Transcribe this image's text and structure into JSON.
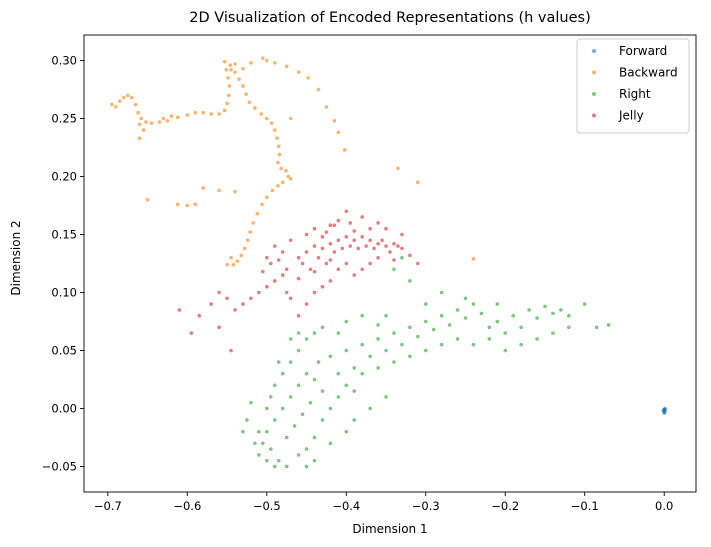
{
  "chart_data": {
    "type": "scatter",
    "title": "2D Visualization of Encoded Representations (h values)",
    "xlabel": "Dimension 1",
    "ylabel": "Dimension 2",
    "xlim": [
      -0.73,
      0.04
    ],
    "ylim": [
      -0.072,
      0.322
    ],
    "x_ticks": [
      -0.7,
      -0.6,
      -0.5,
      -0.4,
      -0.3,
      -0.2,
      -0.1,
      0.0
    ],
    "x_tick_labels": [
      "−0.7",
      "−0.6",
      "−0.5",
      "−0.4",
      "−0.3",
      "−0.2",
      "−0.1",
      "0.0"
    ],
    "y_ticks": [
      -0.05,
      0.0,
      0.05,
      0.1,
      0.15,
      0.2,
      0.25,
      0.3
    ],
    "y_tick_labels": [
      "−0.05",
      "0.00",
      "0.05",
      "0.10",
      "0.15",
      "0.20",
      "0.25",
      "0.30"
    ],
    "grid": false,
    "legend_position": "top-right",
    "series": [
      {
        "name": "Forward",
        "color": "#1f77b4",
        "points": [
          [
            0.0,
            -0.001
          ],
          [
            0.0,
            -0.002
          ],
          [
            0.001,
            -0.003
          ],
          [
            0.0,
            -0.004
          ],
          [
            0.001,
            0.0
          ],
          [
            0.0,
            -0.001
          ],
          [
            -0.001,
            -0.002
          ],
          [
            0.001,
            -0.001
          ]
        ]
      },
      {
        "name": "Backward",
        "color": "#ff7f0e",
        "points": [
          [
            -0.695,
            0.262
          ],
          [
            -0.69,
            0.26
          ],
          [
            -0.685,
            0.265
          ],
          [
            -0.68,
            0.268
          ],
          [
            -0.675,
            0.27
          ],
          [
            -0.67,
            0.268
          ],
          [
            -0.665,
            0.262
          ],
          [
            -0.662,
            0.255
          ],
          [
            -0.658,
            0.25
          ],
          [
            -0.652,
            0.247
          ],
          [
            -0.645,
            0.246
          ],
          [
            -0.635,
            0.247
          ],
          [
            -0.625,
            0.248
          ],
          [
            -0.612,
            0.251
          ],
          [
            -0.6,
            0.253
          ],
          [
            -0.59,
            0.255
          ],
          [
            -0.58,
            0.255
          ],
          [
            -0.57,
            0.254
          ],
          [
            -0.56,
            0.254
          ],
          [
            -0.553,
            0.257
          ],
          [
            -0.55,
            0.263
          ],
          [
            -0.548,
            0.27
          ],
          [
            -0.547,
            0.278
          ],
          [
            -0.549,
            0.285
          ],
          [
            -0.551,
            0.292
          ],
          [
            -0.553,
            0.299
          ],
          [
            -0.546,
            0.296
          ],
          [
            -0.54,
            0.29
          ],
          [
            -0.535,
            0.284
          ],
          [
            -0.53,
            0.278
          ],
          [
            -0.526,
            0.271
          ],
          [
            -0.522,
            0.264
          ],
          [
            -0.515,
            0.259
          ],
          [
            -0.507,
            0.254
          ],
          [
            -0.5,
            0.25
          ],
          [
            -0.494,
            0.246
          ],
          [
            -0.49,
            0.24
          ],
          [
            -0.487,
            0.233
          ],
          [
            -0.485,
            0.226
          ],
          [
            -0.484,
            0.219
          ],
          [
            -0.486,
            0.212
          ],
          [
            -0.482,
            0.207
          ],
          [
            -0.476,
            0.205
          ],
          [
            -0.473,
            0.2
          ],
          [
            -0.47,
            0.198
          ],
          [
            -0.48,
            0.195
          ],
          [
            -0.486,
            0.192
          ],
          [
            -0.493,
            0.188
          ],
          [
            -0.5,
            0.182
          ],
          [
            -0.506,
            0.176
          ],
          [
            -0.512,
            0.168
          ],
          [
            -0.517,
            0.16
          ],
          [
            -0.521,
            0.152
          ],
          [
            -0.524,
            0.145
          ],
          [
            -0.528,
            0.138
          ],
          [
            -0.532,
            0.132
          ],
          [
            -0.537,
            0.127
          ],
          [
            -0.542,
            0.124
          ],
          [
            -0.545,
            0.13
          ],
          [
            -0.55,
            0.124
          ],
          [
            -0.53,
            0.293
          ],
          [
            -0.52,
            0.298
          ],
          [
            -0.505,
            0.302
          ],
          [
            -0.49,
            0.298
          ],
          [
            -0.475,
            0.295
          ],
          [
            -0.46,
            0.29
          ],
          [
            -0.448,
            0.285
          ],
          [
            -0.435,
            0.275
          ],
          [
            -0.425,
            0.26
          ],
          [
            -0.415,
            0.248
          ],
          [
            -0.41,
            0.238
          ],
          [
            -0.402,
            0.223
          ],
          [
            -0.66,
            0.233
          ],
          [
            -0.655,
            0.24
          ],
          [
            -0.65,
            0.18
          ],
          [
            -0.6,
            0.175
          ],
          [
            -0.58,
            0.19
          ],
          [
            -0.56,
            0.188
          ],
          [
            -0.54,
            0.187
          ],
          [
            -0.612,
            0.176
          ],
          [
            -0.59,
            0.176
          ],
          [
            -0.31,
            0.195
          ],
          [
            -0.335,
            0.207
          ],
          [
            -0.24,
            0.129
          ],
          [
            -0.66,
            0.245
          ],
          [
            -0.63,
            0.25
          ],
          [
            -0.62,
            0.252
          ],
          [
            -0.545,
            0.292
          ],
          [
            -0.54,
            0.297
          ],
          [
            -0.5,
            0.3
          ],
          [
            -0.47,
            0.25
          ]
        ]
      },
      {
        "name": "Right",
        "color": "#2ca02c",
        "points": [
          [
            -0.51,
            -0.04
          ],
          [
            -0.505,
            -0.03
          ],
          [
            -0.5,
            -0.02
          ],
          [
            -0.495,
            -0.035
          ],
          [
            -0.49,
            -0.01
          ],
          [
            -0.485,
            -0.045
          ],
          [
            -0.48,
            0.0
          ],
          [
            -0.475,
            -0.025
          ],
          [
            -0.47,
            0.01
          ],
          [
            -0.465,
            -0.015
          ],
          [
            -0.46,
            0.02
          ],
          [
            -0.455,
            -0.005
          ],
          [
            -0.45,
            0.03
          ],
          [
            -0.445,
            0.005
          ],
          [
            -0.44,
            0.025
          ],
          [
            -0.435,
            0.04
          ],
          [
            -0.43,
            0.015
          ],
          [
            -0.42,
            0.045
          ],
          [
            -0.41,
            0.03
          ],
          [
            -0.4,
            0.05
          ],
          [
            -0.39,
            0.035
          ],
          [
            -0.38,
            0.055
          ],
          [
            -0.37,
            0.045
          ],
          [
            -0.36,
            0.06
          ],
          [
            -0.35,
            0.05
          ],
          [
            -0.34,
            0.065
          ],
          [
            -0.33,
            0.055
          ],
          [
            -0.32,
            0.07
          ],
          [
            -0.31,
            0.062
          ],
          [
            -0.3,
            0.075
          ],
          [
            -0.29,
            0.068
          ],
          [
            -0.28,
            0.08
          ],
          [
            -0.27,
            0.072
          ],
          [
            -0.26,
            0.085
          ],
          [
            -0.25,
            0.078
          ],
          [
            -0.24,
            0.09
          ],
          [
            -0.23,
            0.082
          ],
          [
            -0.22,
            0.07
          ],
          [
            -0.21,
            0.075
          ],
          [
            -0.2,
            0.065
          ],
          [
            -0.19,
            0.08
          ],
          [
            -0.18,
            0.07
          ],
          [
            -0.17,
            0.085
          ],
          [
            -0.16,
            0.078
          ],
          [
            -0.15,
            0.088
          ],
          [
            -0.14,
            0.082
          ],
          [
            -0.13,
            0.085
          ],
          [
            -0.12,
            0.08
          ],
          [
            -0.1,
            0.09
          ],
          [
            -0.085,
            0.07
          ],
          [
            -0.07,
            0.072
          ],
          [
            -0.28,
            0.1
          ],
          [
            -0.25,
            0.095
          ],
          [
            -0.21,
            0.09
          ],
          [
            -0.3,
            0.09
          ],
          [
            -0.35,
            0.08
          ],
          [
            -0.33,
            0.13
          ],
          [
            -0.34,
            0.12
          ],
          [
            -0.32,
            0.11
          ],
          [
            -0.5,
            0.0
          ],
          [
            -0.495,
            0.01
          ],
          [
            -0.49,
            0.02
          ],
          [
            -0.48,
            0.03
          ],
          [
            -0.47,
            0.04
          ],
          [
            -0.46,
            0.05
          ],
          [
            -0.45,
            0.06
          ],
          [
            -0.44,
            0.065
          ],
          [
            -0.51,
            -0.02
          ],
          [
            -0.5,
            -0.045
          ],
          [
            -0.49,
            -0.05
          ],
          [
            -0.475,
            -0.05
          ],
          [
            -0.46,
            -0.04
          ],
          [
            -0.45,
            -0.035
          ],
          [
            -0.44,
            -0.025
          ],
          [
            -0.43,
            -0.01
          ],
          [
            -0.42,
            0.0
          ],
          [
            -0.41,
            0.01
          ],
          [
            -0.4,
            0.02
          ],
          [
            -0.39,
            0.015
          ],
          [
            -0.38,
            0.03
          ],
          [
            -0.36,
            0.035
          ],
          [
            -0.34,
            0.04
          ],
          [
            -0.32,
            0.045
          ],
          [
            -0.3,
            0.05
          ],
          [
            -0.28,
            0.055
          ],
          [
            -0.26,
            0.06
          ],
          [
            -0.24,
            0.055
          ],
          [
            -0.22,
            0.06
          ],
          [
            -0.2,
            0.05
          ],
          [
            -0.18,
            0.055
          ],
          [
            -0.16,
            0.06
          ],
          [
            -0.14,
            0.065
          ],
          [
            -0.12,
            0.07
          ],
          [
            -0.525,
            -0.01
          ],
          [
            -0.52,
            0.005
          ],
          [
            -0.515,
            -0.03
          ],
          [
            -0.53,
            -0.02
          ],
          [
            -0.485,
            0.04
          ],
          [
            -0.47,
            0.06
          ],
          [
            -0.46,
            0.065
          ],
          [
            -0.43,
            0.07
          ],
          [
            -0.41,
            0.065
          ],
          [
            -0.4,
            0.075
          ],
          [
            -0.38,
            0.08
          ],
          [
            -0.36,
            0.072
          ],
          [
            -0.44,
            -0.045
          ],
          [
            -0.45,
            -0.05
          ],
          [
            -0.42,
            -0.03
          ],
          [
            -0.4,
            -0.02
          ],
          [
            -0.39,
            -0.01
          ],
          [
            -0.37,
            0.0
          ],
          [
            -0.35,
            0.01
          ]
        ]
      },
      {
        "name": "Jelly",
        "color": "#d62728",
        "points": [
          [
            -0.46,
            0.13
          ],
          [
            -0.455,
            0.125
          ],
          [
            -0.45,
            0.135
          ],
          [
            -0.445,
            0.12
          ],
          [
            -0.44,
            0.14
          ],
          [
            -0.435,
            0.13
          ],
          [
            -0.43,
            0.138
          ],
          [
            -0.425,
            0.125
          ],
          [
            -0.42,
            0.142
          ],
          [
            -0.415,
            0.135
          ],
          [
            -0.41,
            0.145
          ],
          [
            -0.405,
            0.138
          ],
          [
            -0.4,
            0.148
          ],
          [
            -0.395,
            0.14
          ],
          [
            -0.39,
            0.145
          ],
          [
            -0.385,
            0.138
          ],
          [
            -0.38,
            0.148
          ],
          [
            -0.375,
            0.14
          ],
          [
            -0.37,
            0.145
          ],
          [
            -0.365,
            0.138
          ],
          [
            -0.36,
            0.142
          ],
          [
            -0.355,
            0.145
          ],
          [
            -0.35,
            0.14
          ],
          [
            -0.345,
            0.135
          ],
          [
            -0.34,
            0.142
          ],
          [
            -0.335,
            0.14
          ],
          [
            -0.33,
            0.138
          ],
          [
            -0.475,
            0.12
          ],
          [
            -0.48,
            0.115
          ],
          [
            -0.485,
            0.128
          ],
          [
            -0.49,
            0.11
          ],
          [
            -0.495,
            0.125
          ],
          [
            -0.5,
            0.105
          ],
          [
            -0.505,
            0.118
          ],
          [
            -0.51,
            0.1
          ],
          [
            -0.52,
            0.095
          ],
          [
            -0.53,
            0.09
          ],
          [
            -0.54,
            0.085
          ],
          [
            -0.55,
            0.095
          ],
          [
            -0.56,
            0.1
          ],
          [
            -0.57,
            0.09
          ],
          [
            -0.585,
            0.08
          ],
          [
            -0.61,
            0.085
          ],
          [
            -0.595,
            0.065
          ],
          [
            -0.56,
            0.07
          ],
          [
            -0.545,
            0.05
          ],
          [
            -0.47,
            0.095
          ],
          [
            -0.46,
            0.08
          ],
          [
            -0.45,
            0.09
          ],
          [
            -0.44,
            0.1
          ],
          [
            -0.43,
            0.105
          ],
          [
            -0.42,
            0.11
          ],
          [
            -0.41,
            0.12
          ],
          [
            -0.4,
            0.125
          ],
          [
            -0.39,
            0.115
          ],
          [
            -0.38,
            0.12
          ],
          [
            -0.37,
            0.125
          ],
          [
            -0.36,
            0.13
          ],
          [
            -0.34,
            0.128
          ],
          [
            -0.32,
            0.132
          ],
          [
            -0.31,
            0.125
          ],
          [
            -0.41,
            0.162
          ],
          [
            -0.42,
            0.158
          ],
          [
            -0.4,
            0.17
          ],
          [
            -0.38,
            0.165
          ],
          [
            -0.36,
            0.16
          ],
          [
            -0.44,
            0.155
          ],
          [
            -0.45,
            0.15
          ],
          [
            -0.47,
            0.145
          ],
          [
            -0.49,
            0.14
          ],
          [
            -0.5,
            0.13
          ],
          [
            -0.48,
            0.135
          ],
          [
            -0.46,
            0.112
          ],
          [
            -0.44,
            0.118
          ],
          [
            -0.42,
            0.128
          ],
          [
            -0.35,
            0.155
          ],
          [
            -0.33,
            0.15
          ],
          [
            -0.39,
            0.153
          ],
          [
            -0.37,
            0.155
          ],
          [
            -0.43,
            0.148
          ],
          [
            -0.425,
            0.152
          ],
          [
            -0.415,
            0.158
          ],
          [
            -0.395,
            0.16
          ],
          [
            -0.475,
            0.1
          ]
        ]
      }
    ]
  }
}
